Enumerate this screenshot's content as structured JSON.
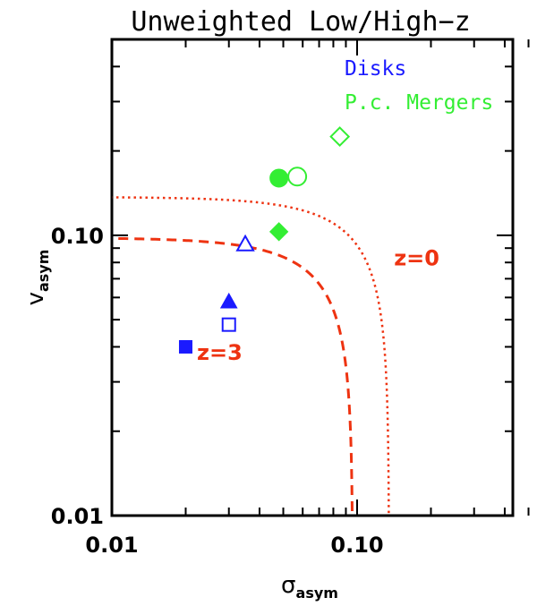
{
  "chart_data": {
    "type": "scatter",
    "title": "Unweighted Low/High−z",
    "xlabel": "σ",
    "xlabel_sub": "asym",
    "ylabel": "v",
    "ylabel_sub": "asym",
    "xscale": "log",
    "yscale": "log",
    "xlim": [
      0.01,
      0.5
    ],
    "ylim": [
      0.01,
      0.5
    ],
    "x_ticks": [
      {
        "value": 0.01,
        "label": "0.01"
      },
      {
        "value": 0.1,
        "label": "0.10"
      }
    ],
    "y_ticks": [
      {
        "value": 0.01,
        "label": "0.01"
      },
      {
        "value": 0.1,
        "label": "0.10"
      }
    ],
    "legend": [
      {
        "label": "Disks",
        "color": "#1a1aff"
      },
      {
        "label": "P.c. Mergers",
        "color": "#33ee33"
      }
    ],
    "legend_position": "top-right",
    "series": [
      {
        "group": "Disks",
        "color": "#1a1aff",
        "points": [
          {
            "x": 0.02,
            "y": 0.04,
            "marker": "square",
            "filled": true
          },
          {
            "x": 0.03,
            "y": 0.048,
            "marker": "square",
            "filled": false
          },
          {
            "x": 0.03,
            "y": 0.058,
            "marker": "triangle",
            "filled": true
          },
          {
            "x": 0.035,
            "y": 0.093,
            "marker": "triangle",
            "filled": false
          }
        ]
      },
      {
        "group": "P.c. Mergers",
        "color": "#33ee33",
        "points": [
          {
            "x": 0.048,
            "y": 0.103,
            "marker": "diamond",
            "filled": true
          },
          {
            "x": 0.048,
            "y": 0.16,
            "marker": "circle",
            "filled": true
          },
          {
            "x": 0.057,
            "y": 0.162,
            "marker": "circle",
            "filled": false
          },
          {
            "x": 0.085,
            "y": 0.225,
            "marker": "diamond",
            "filled": false
          }
        ]
      }
    ],
    "curves": [
      {
        "label": "z=0",
        "style": "dotted",
        "color": "#ee3311",
        "a": 0.135,
        "b": 0.137
      },
      {
        "label": "z=3",
        "style": "dashed",
        "color": "#ee3311",
        "a": 0.096,
        "b": 0.098
      }
    ],
    "curve_labels": [
      {
        "text": "z=0",
        "x": 0.175,
        "y": 0.078
      },
      {
        "text": "z=3",
        "x": 0.0275,
        "y": 0.036
      }
    ]
  }
}
